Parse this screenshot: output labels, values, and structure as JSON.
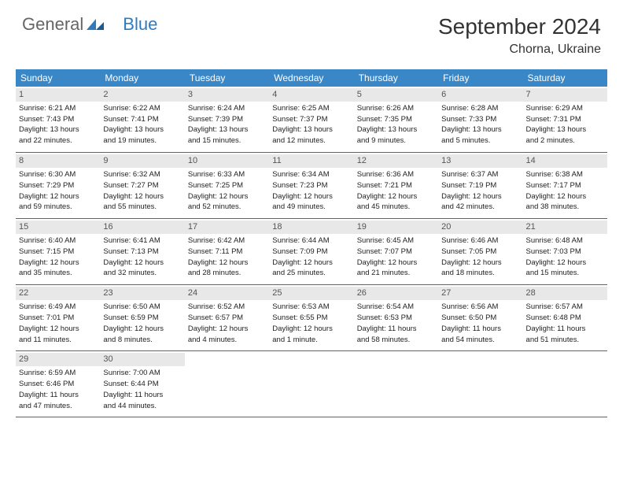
{
  "logo": {
    "text1": "General",
    "text2": "Blue"
  },
  "title": "September 2024",
  "location": "Chorna, Ukraine",
  "colors": {
    "header_bg": "#3a87c8",
    "daynum_bg": "#e8e8e8",
    "border": "#2f6fa8",
    "logo_blue": "#2f7bbf"
  },
  "weekdays": [
    "Sunday",
    "Monday",
    "Tuesday",
    "Wednesday",
    "Thursday",
    "Friday",
    "Saturday"
  ],
  "weeks": [
    [
      {
        "n": "1",
        "sr": "Sunrise: 6:21 AM",
        "ss": "Sunset: 7:43 PM",
        "d1": "Daylight: 13 hours",
        "d2": "and 22 minutes."
      },
      {
        "n": "2",
        "sr": "Sunrise: 6:22 AM",
        "ss": "Sunset: 7:41 PM",
        "d1": "Daylight: 13 hours",
        "d2": "and 19 minutes."
      },
      {
        "n": "3",
        "sr": "Sunrise: 6:24 AM",
        "ss": "Sunset: 7:39 PM",
        "d1": "Daylight: 13 hours",
        "d2": "and 15 minutes."
      },
      {
        "n": "4",
        "sr": "Sunrise: 6:25 AM",
        "ss": "Sunset: 7:37 PM",
        "d1": "Daylight: 13 hours",
        "d2": "and 12 minutes."
      },
      {
        "n": "5",
        "sr": "Sunrise: 6:26 AM",
        "ss": "Sunset: 7:35 PM",
        "d1": "Daylight: 13 hours",
        "d2": "and 9 minutes."
      },
      {
        "n": "6",
        "sr": "Sunrise: 6:28 AM",
        "ss": "Sunset: 7:33 PM",
        "d1": "Daylight: 13 hours",
        "d2": "and 5 minutes."
      },
      {
        "n": "7",
        "sr": "Sunrise: 6:29 AM",
        "ss": "Sunset: 7:31 PM",
        "d1": "Daylight: 13 hours",
        "d2": "and 2 minutes."
      }
    ],
    [
      {
        "n": "8",
        "sr": "Sunrise: 6:30 AM",
        "ss": "Sunset: 7:29 PM",
        "d1": "Daylight: 12 hours",
        "d2": "and 59 minutes."
      },
      {
        "n": "9",
        "sr": "Sunrise: 6:32 AM",
        "ss": "Sunset: 7:27 PM",
        "d1": "Daylight: 12 hours",
        "d2": "and 55 minutes."
      },
      {
        "n": "10",
        "sr": "Sunrise: 6:33 AM",
        "ss": "Sunset: 7:25 PM",
        "d1": "Daylight: 12 hours",
        "d2": "and 52 minutes."
      },
      {
        "n": "11",
        "sr": "Sunrise: 6:34 AM",
        "ss": "Sunset: 7:23 PM",
        "d1": "Daylight: 12 hours",
        "d2": "and 49 minutes."
      },
      {
        "n": "12",
        "sr": "Sunrise: 6:36 AM",
        "ss": "Sunset: 7:21 PM",
        "d1": "Daylight: 12 hours",
        "d2": "and 45 minutes."
      },
      {
        "n": "13",
        "sr": "Sunrise: 6:37 AM",
        "ss": "Sunset: 7:19 PM",
        "d1": "Daylight: 12 hours",
        "d2": "and 42 minutes."
      },
      {
        "n": "14",
        "sr": "Sunrise: 6:38 AM",
        "ss": "Sunset: 7:17 PM",
        "d1": "Daylight: 12 hours",
        "d2": "and 38 minutes."
      }
    ],
    [
      {
        "n": "15",
        "sr": "Sunrise: 6:40 AM",
        "ss": "Sunset: 7:15 PM",
        "d1": "Daylight: 12 hours",
        "d2": "and 35 minutes."
      },
      {
        "n": "16",
        "sr": "Sunrise: 6:41 AM",
        "ss": "Sunset: 7:13 PM",
        "d1": "Daylight: 12 hours",
        "d2": "and 32 minutes."
      },
      {
        "n": "17",
        "sr": "Sunrise: 6:42 AM",
        "ss": "Sunset: 7:11 PM",
        "d1": "Daylight: 12 hours",
        "d2": "and 28 minutes."
      },
      {
        "n": "18",
        "sr": "Sunrise: 6:44 AM",
        "ss": "Sunset: 7:09 PM",
        "d1": "Daylight: 12 hours",
        "d2": "and 25 minutes."
      },
      {
        "n": "19",
        "sr": "Sunrise: 6:45 AM",
        "ss": "Sunset: 7:07 PM",
        "d1": "Daylight: 12 hours",
        "d2": "and 21 minutes."
      },
      {
        "n": "20",
        "sr": "Sunrise: 6:46 AM",
        "ss": "Sunset: 7:05 PM",
        "d1": "Daylight: 12 hours",
        "d2": "and 18 minutes."
      },
      {
        "n": "21",
        "sr": "Sunrise: 6:48 AM",
        "ss": "Sunset: 7:03 PM",
        "d1": "Daylight: 12 hours",
        "d2": "and 15 minutes."
      }
    ],
    [
      {
        "n": "22",
        "sr": "Sunrise: 6:49 AM",
        "ss": "Sunset: 7:01 PM",
        "d1": "Daylight: 12 hours",
        "d2": "and 11 minutes."
      },
      {
        "n": "23",
        "sr": "Sunrise: 6:50 AM",
        "ss": "Sunset: 6:59 PM",
        "d1": "Daylight: 12 hours",
        "d2": "and 8 minutes."
      },
      {
        "n": "24",
        "sr": "Sunrise: 6:52 AM",
        "ss": "Sunset: 6:57 PM",
        "d1": "Daylight: 12 hours",
        "d2": "and 4 minutes."
      },
      {
        "n": "25",
        "sr": "Sunrise: 6:53 AM",
        "ss": "Sunset: 6:55 PM",
        "d1": "Daylight: 12 hours",
        "d2": "and 1 minute."
      },
      {
        "n": "26",
        "sr": "Sunrise: 6:54 AM",
        "ss": "Sunset: 6:53 PM",
        "d1": "Daylight: 11 hours",
        "d2": "and 58 minutes."
      },
      {
        "n": "27",
        "sr": "Sunrise: 6:56 AM",
        "ss": "Sunset: 6:50 PM",
        "d1": "Daylight: 11 hours",
        "d2": "and 54 minutes."
      },
      {
        "n": "28",
        "sr": "Sunrise: 6:57 AM",
        "ss": "Sunset: 6:48 PM",
        "d1": "Daylight: 11 hours",
        "d2": "and 51 minutes."
      }
    ],
    [
      {
        "n": "29",
        "sr": "Sunrise: 6:59 AM",
        "ss": "Sunset: 6:46 PM",
        "d1": "Daylight: 11 hours",
        "d2": "and 47 minutes."
      },
      {
        "n": "30",
        "sr": "Sunrise: 7:00 AM",
        "ss": "Sunset: 6:44 PM",
        "d1": "Daylight: 11 hours",
        "d2": "and 44 minutes."
      },
      {
        "empty": true
      },
      {
        "empty": true
      },
      {
        "empty": true
      },
      {
        "empty": true
      },
      {
        "empty": true
      }
    ]
  ]
}
